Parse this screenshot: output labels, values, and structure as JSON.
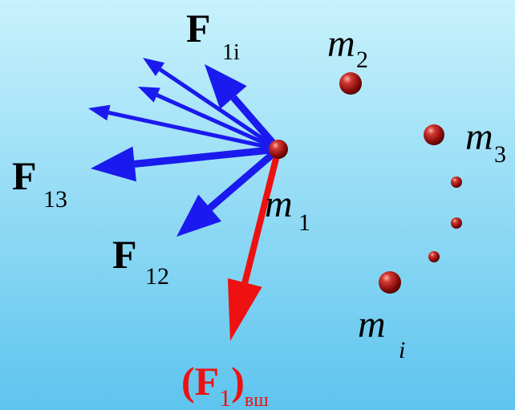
{
  "labels": {
    "f1i": {
      "main": "F",
      "sub": "1i"
    },
    "m2": {
      "main": "m",
      "sub": "2"
    },
    "m3": {
      "main": "m",
      "sub": "3"
    },
    "f13": {
      "main": "F",
      "sub": "13"
    },
    "m1": {
      "main": "m",
      "sub": "1"
    },
    "f12": {
      "main": "F",
      "sub": "12"
    },
    "mi": {
      "main": "m",
      "sub": "i"
    },
    "fext": {
      "open": "(",
      "main": "F",
      "sub": "1",
      "close": ")",
      "sub2": "вш"
    }
  }
}
